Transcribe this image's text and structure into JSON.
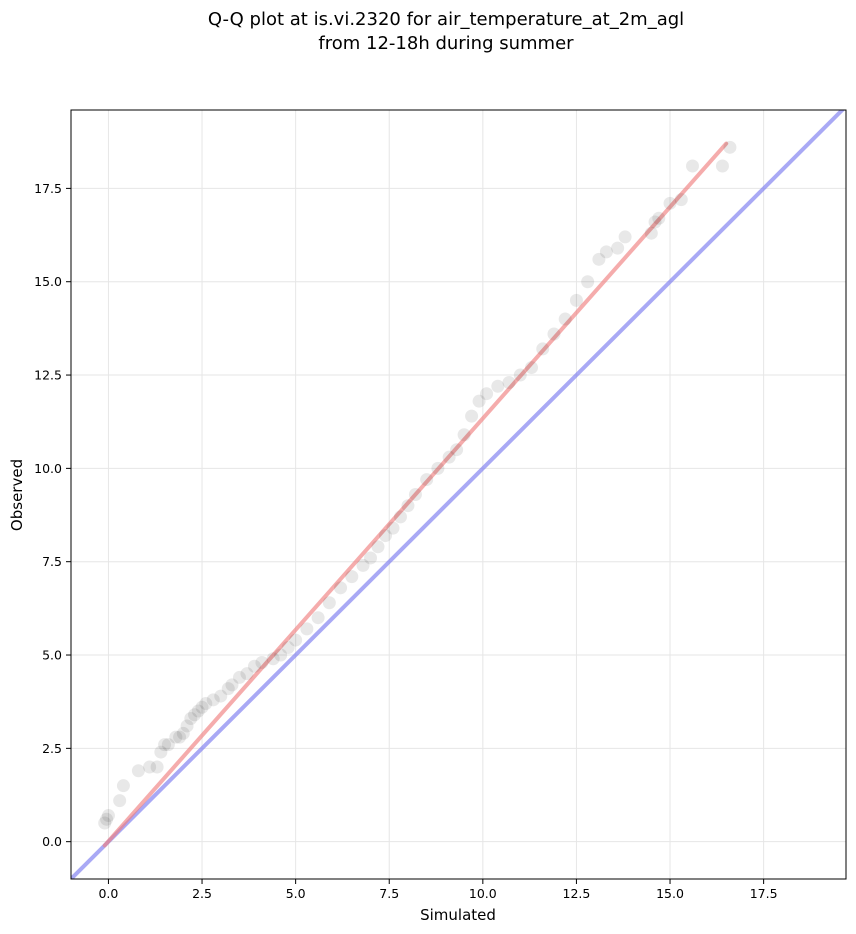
{
  "chart_data": {
    "type": "scatter",
    "title": [
      "Q-Q plot at is.vi.2320 for air_temperature_at_2m_agl",
      "from 12-18h during summer"
    ],
    "xlabel": "Simulated",
    "ylabel": "Observed",
    "xlim": [
      -1.0,
      19.7
    ],
    "ylim": [
      -1.0,
      19.6
    ],
    "xticks": [
      0.0,
      2.5,
      5.0,
      7.5,
      10.0,
      12.5,
      15.0,
      17.5
    ],
    "yticks": [
      0.0,
      2.5,
      5.0,
      7.5,
      10.0,
      12.5,
      15.0,
      17.5
    ],
    "xtick_labels": [
      "0.0",
      "2.5",
      "5.0",
      "7.5",
      "10.0",
      "12.5",
      "15.0",
      "17.5"
    ],
    "ytick_labels": [
      "0.0",
      "2.5",
      "5.0",
      "7.5",
      "10.0",
      "12.5",
      "15.0",
      "17.5"
    ],
    "grid": true,
    "colors": {
      "points": "#000000",
      "fit_line": "#f08080",
      "identity_line": "#7b7bf0",
      "grid": "#e6e6e6"
    },
    "series": [
      {
        "role": "quantiles",
        "x": [
          -0.1,
          -0.05,
          0.0,
          0.3,
          0.4,
          0.8,
          1.1,
          1.3,
          1.4,
          1.5,
          1.6,
          1.8,
          1.9,
          2.0,
          2.1,
          2.2,
          2.3,
          2.4,
          2.5,
          2.6,
          2.8,
          3.0,
          3.2,
          3.3,
          3.5,
          3.7,
          3.9,
          4.1,
          4.4,
          4.6,
          4.8,
          5.0,
          5.3,
          5.6,
          5.9,
          6.2,
          6.5,
          6.8,
          7.0,
          7.2,
          7.4,
          7.6,
          7.8,
          8.0,
          8.2,
          8.5,
          8.8,
          9.1,
          9.3,
          9.5,
          9.7,
          9.9,
          10.1,
          10.4,
          10.7,
          11.0,
          11.3,
          11.6,
          11.9,
          12.2,
          12.5,
          12.8,
          13.1,
          13.3,
          13.6,
          13.8,
          14.5,
          14.6,
          14.7,
          15.0,
          15.3,
          15.6,
          16.4,
          16.6
        ],
        "y": [
          0.5,
          0.6,
          0.7,
          1.1,
          1.5,
          1.9,
          2.0,
          2.0,
          2.4,
          2.6,
          2.6,
          2.8,
          2.8,
          2.9,
          3.1,
          3.3,
          3.4,
          3.5,
          3.6,
          3.7,
          3.8,
          3.9,
          4.1,
          4.2,
          4.4,
          4.5,
          4.7,
          4.8,
          4.9,
          5.0,
          5.2,
          5.4,
          5.7,
          6.0,
          6.4,
          6.8,
          7.1,
          7.4,
          7.6,
          7.9,
          8.2,
          8.4,
          8.7,
          9.0,
          9.3,
          9.7,
          10.0,
          10.3,
          10.5,
          10.9,
          11.4,
          11.8,
          12.0,
          12.2,
          12.3,
          12.5,
          12.7,
          13.2,
          13.6,
          14.0,
          14.5,
          15.0,
          15.6,
          15.8,
          15.9,
          16.2,
          16.3,
          16.6,
          16.7,
          17.1,
          17.2,
          18.1,
          18.1,
          18.6
        ]
      },
      {
        "role": "fit_line",
        "x": [
          -0.1,
          16.5
        ],
        "y": [
          -0.1,
          18.7
        ]
      },
      {
        "role": "identity_line",
        "x": [
          -1.0,
          19.7
        ],
        "y": [
          -1.0,
          19.7
        ]
      }
    ]
  }
}
